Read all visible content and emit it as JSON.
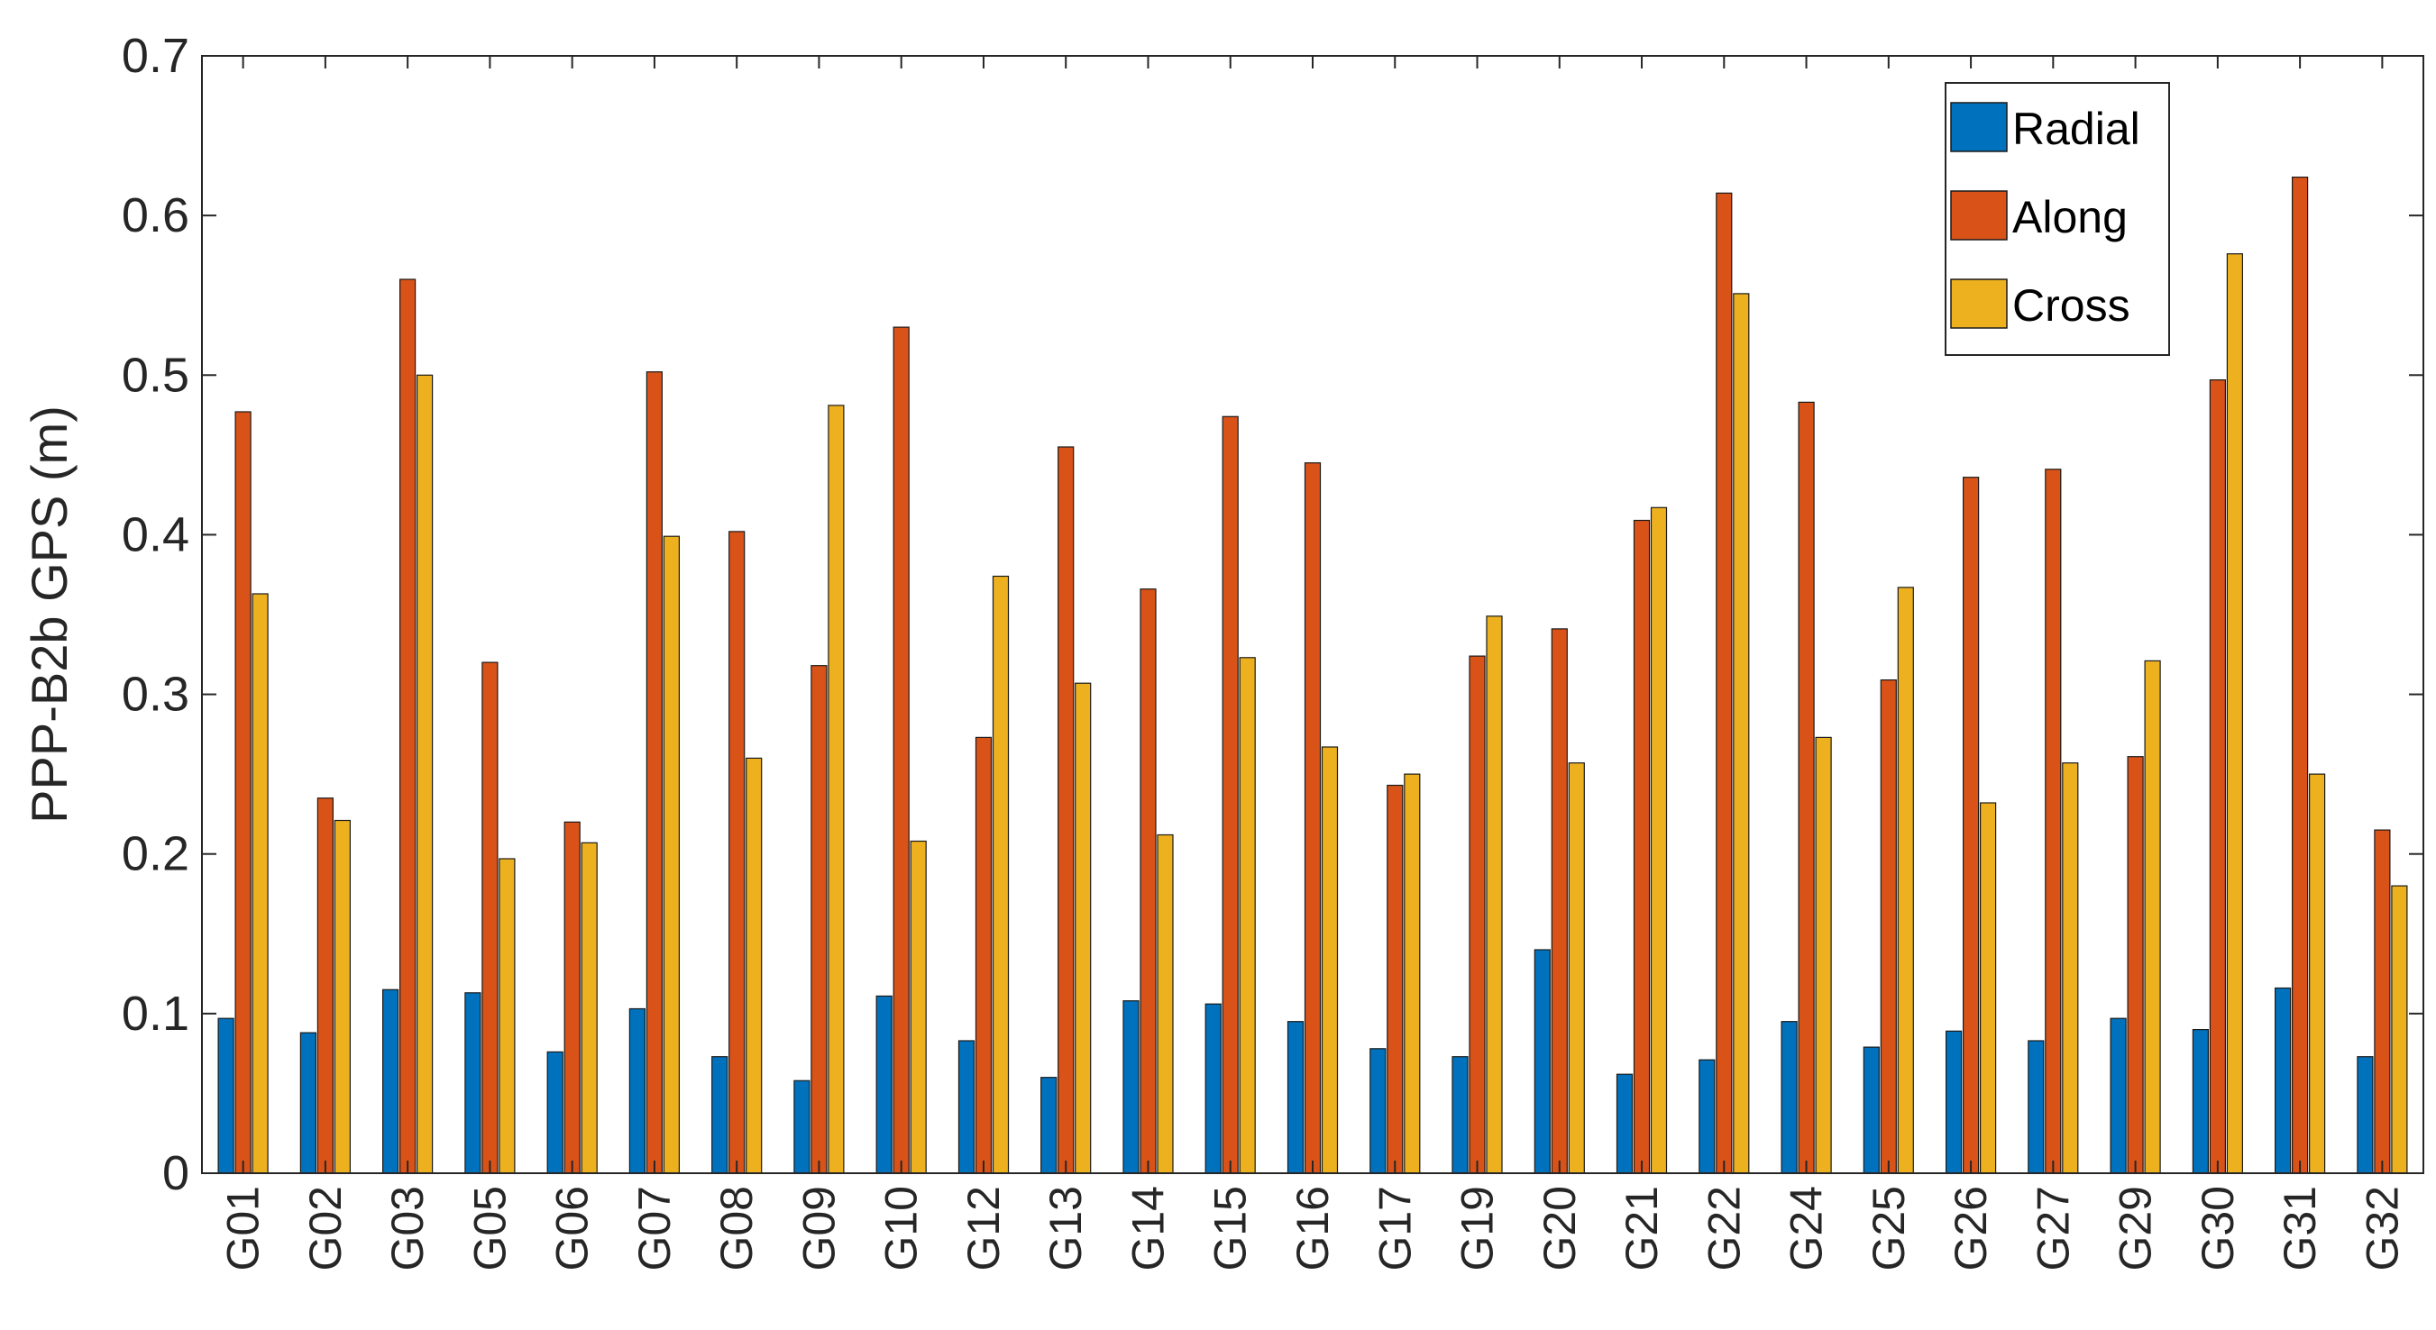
{
  "chart_data": {
    "type": "bar",
    "title": "",
    "xlabel": "",
    "ylabel": "PPP-B2b GPS (m)",
    "ylim": [
      0,
      0.7
    ],
    "yticks": [
      0,
      0.1,
      0.2,
      0.3,
      0.4,
      0.5,
      0.6,
      0.7
    ],
    "ytick_labels": [
      "0",
      "0.1",
      "0.2",
      "0.3",
      "0.4",
      "0.5",
      "0.6",
      "0.7"
    ],
    "grid": false,
    "legend_position": "top-right",
    "categories": [
      "G01",
      "G02",
      "G03",
      "G05",
      "G06",
      "G07",
      "G08",
      "G09",
      "G10",
      "G12",
      "G13",
      "G14",
      "G15",
      "G16",
      "G17",
      "G19",
      "G20",
      "G21",
      "G22",
      "G24",
      "G25",
      "G26",
      "G27",
      "G29",
      "G30",
      "G31",
      "G32"
    ],
    "series": [
      {
        "name": "Radial",
        "color": "#0072BD",
        "values": [
          0.097,
          0.088,
          0.115,
          0.113,
          0.076,
          0.103,
          0.073,
          0.058,
          0.111,
          0.083,
          0.06,
          0.108,
          0.106,
          0.095,
          0.078,
          0.073,
          0.14,
          0.062,
          0.071,
          0.095,
          0.079,
          0.089,
          0.083,
          0.097,
          0.09,
          0.116,
          0.073
        ]
      },
      {
        "name": "Along",
        "color": "#D95319",
        "values": [
          0.477,
          0.235,
          0.56,
          0.32,
          0.22,
          0.502,
          0.402,
          0.318,
          0.53,
          0.273,
          0.455,
          0.366,
          0.474,
          0.445,
          0.243,
          0.324,
          0.341,
          0.409,
          0.614,
          0.483,
          0.309,
          0.436,
          0.441,
          0.261,
          0.497,
          0.624,
          0.215
        ]
      },
      {
        "name": "Cross",
        "color": "#EDB120",
        "values": [
          0.363,
          0.221,
          0.5,
          0.197,
          0.207,
          0.399,
          0.26,
          0.481,
          0.208,
          0.374,
          0.307,
          0.212,
          0.323,
          0.267,
          0.25,
          0.349,
          0.257,
          0.417,
          0.551,
          0.273,
          0.367,
          0.232,
          0.257,
          0.321,
          0.576,
          0.25,
          0.18
        ]
      }
    ]
  }
}
